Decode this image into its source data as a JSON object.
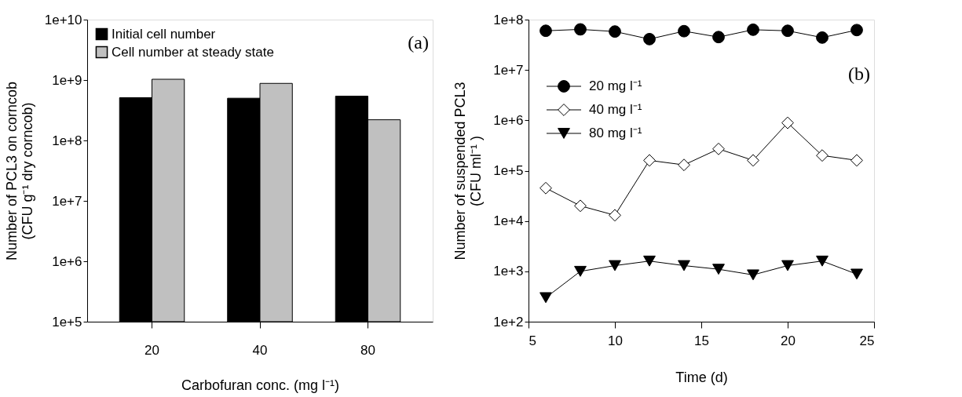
{
  "chart_data": [
    {
      "type": "bar",
      "xlabel": "Carbofuran conc. (mg l⁻¹)",
      "ylabel": [
        "Number of PCL3 on corncob",
        "(CFU g⁻¹ dry corncob)"
      ],
      "categories": [
        "20",
        "40",
        "80"
      ],
      "series": [
        {
          "name": "Initial cell number",
          "color": "#000000",
          "values": [
            510000000,
            500000000,
            540000000
          ]
        },
        {
          "name": "Cell number at steady state",
          "color": "#c0c0c0",
          "values": [
            1030000000,
            880000000,
            220000000
          ]
        }
      ],
      "log": true,
      "ylim": [
        100000,
        10000000000
      ],
      "yticks": [
        {
          "value": 100000,
          "label": "1e+5"
        },
        {
          "value": 1000000,
          "label": "1e+6"
        },
        {
          "value": 10000000,
          "label": "1e+7"
        },
        {
          "value": 100000000,
          "label": "1e+8"
        },
        {
          "value": 1000000000,
          "label": "1e+9"
        },
        {
          "value": 10000000000,
          "label": "1e+10"
        }
      ],
      "legend": "top left",
      "grid": false,
      "annotations": [
        "(a)"
      ]
    },
    {
      "type": "line",
      "xlabel": "Time (d)",
      "ylabel": [
        "Number of suspended PCL3",
        "(CFU ml⁻¹ )"
      ],
      "x": [
        6,
        8,
        10,
        12,
        14,
        16,
        18,
        20,
        22,
        24
      ],
      "series": [
        {
          "name": "20 mg l⁻¹",
          "color": "#000000",
          "marker": "circle",
          "values": [
            60000000,
            64000000,
            58000000,
            41000000,
            59000000,
            45000000,
            63000000,
            60000000,
            44000000,
            62000000
          ]
        },
        {
          "name": "40 mg l⁻¹",
          "color": "#ffffff",
          "marker": "diamond",
          "values": [
            45000,
            20000,
            13000,
            160000,
            130000,
            270000,
            160000,
            890000,
            200000,
            160000
          ]
        },
        {
          "name": "80 mg l⁻¹",
          "color": "#000000",
          "marker": "triangle",
          "values": [
            300,
            1000,
            1300,
            1600,
            1300,
            1100,
            850,
            1300,
            1600,
            880
          ]
        }
      ],
      "log": true,
      "xlim": [
        5,
        25
      ],
      "xticks": [
        5,
        10,
        15,
        20,
        25
      ],
      "ylim": [
        100,
        100000000
      ],
      "yticks": [
        {
          "value": 100,
          "label": "1e+2"
        },
        {
          "value": 1000,
          "label": "1e+3"
        },
        {
          "value": 10000,
          "label": "1e+4"
        },
        {
          "value": 100000,
          "label": "1e+5"
        },
        {
          "value": 1000000,
          "label": "1e+6"
        },
        {
          "value": 10000000,
          "label": "1e+7"
        },
        {
          "value": 100000000,
          "label": "1e+8"
        }
      ],
      "legend": "left",
      "grid": false,
      "annotations": [
        "(b)"
      ]
    }
  ]
}
